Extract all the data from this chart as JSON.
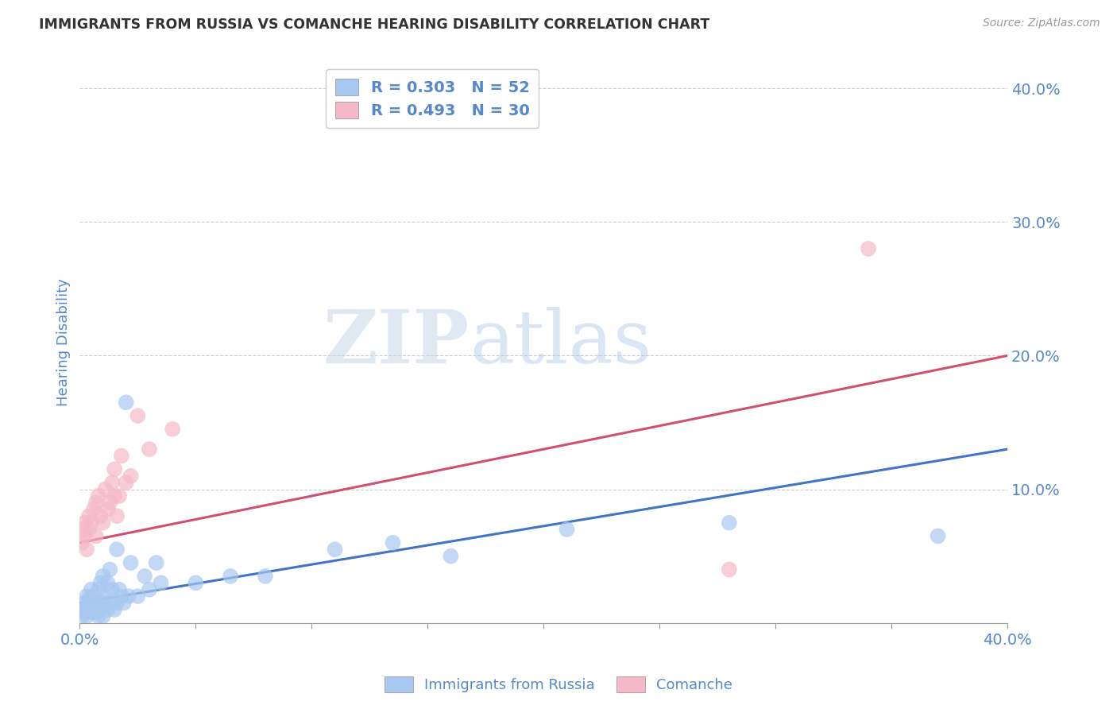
{
  "title": "IMMIGRANTS FROM RUSSIA VS COMANCHE HEARING DISABILITY CORRELATION CHART",
  "source": "Source: ZipAtlas.com",
  "ylabel": "Hearing Disability",
  "xlim": [
    0.0,
    0.4
  ],
  "ylim": [
    0.0,
    0.42
  ],
  "xticks": [
    0.0,
    0.05,
    0.1,
    0.15,
    0.2,
    0.25,
    0.3,
    0.35,
    0.4
  ],
  "yticks_right": [
    0.0,
    0.1,
    0.2,
    0.3,
    0.4
  ],
  "yticklabels_right": [
    "",
    "10.0%",
    "20.0%",
    "30.0%",
    "40.0%"
  ],
  "legend_R1": "R = 0.303",
  "legend_N1": "N = 52",
  "legend_R2": "R = 0.493",
  "legend_N2": "N = 30",
  "color_russia": "#a8c8f0",
  "color_comanche": "#f5b8c8",
  "color_russia_line": "#4472c4",
  "color_comanche_line": "#d05070",
  "color_axis_labels": "#5588cc",
  "color_legend_text": "#5588cc",
  "color_title": "#333333",
  "background_color": "#ffffff",
  "grid_color": "#cccccc",
  "russia_x": [
    0.001,
    0.001,
    0.002,
    0.002,
    0.003,
    0.003,
    0.003,
    0.004,
    0.004,
    0.005,
    0.005,
    0.005,
    0.006,
    0.006,
    0.007,
    0.007,
    0.008,
    0.008,
    0.009,
    0.009,
    0.01,
    0.01,
    0.01,
    0.011,
    0.012,
    0.012,
    0.013,
    0.013,
    0.014,
    0.015,
    0.016,
    0.016,
    0.017,
    0.018,
    0.019,
    0.02,
    0.021,
    0.022,
    0.025,
    0.028,
    0.03,
    0.033,
    0.035,
    0.05,
    0.065,
    0.08,
    0.11,
    0.135,
    0.16,
    0.21,
    0.28,
    0.37
  ],
  "russia_y": [
    0.005,
    0.01,
    0.008,
    0.015,
    0.005,
    0.012,
    0.02,
    0.01,
    0.018,
    0.008,
    0.015,
    0.025,
    0.01,
    0.02,
    0.008,
    0.015,
    0.005,
    0.025,
    0.01,
    0.03,
    0.005,
    0.015,
    0.035,
    0.02,
    0.01,
    0.03,
    0.015,
    0.04,
    0.025,
    0.01,
    0.015,
    0.055,
    0.025,
    0.02,
    0.015,
    0.165,
    0.02,
    0.045,
    0.02,
    0.035,
    0.025,
    0.045,
    0.03,
    0.03,
    0.035,
    0.035,
    0.055,
    0.06,
    0.05,
    0.07,
    0.075,
    0.065
  ],
  "comanche_x": [
    0.001,
    0.001,
    0.002,
    0.002,
    0.003,
    0.004,
    0.004,
    0.005,
    0.006,
    0.007,
    0.007,
    0.008,
    0.009,
    0.01,
    0.011,
    0.012,
    0.013,
    0.014,
    0.015,
    0.015,
    0.016,
    0.017,
    0.018,
    0.02,
    0.022,
    0.025,
    0.03,
    0.04,
    0.28,
    0.34
  ],
  "comanche_y": [
    0.06,
    0.07,
    0.065,
    0.075,
    0.055,
    0.08,
    0.07,
    0.075,
    0.085,
    0.065,
    0.09,
    0.095,
    0.08,
    0.075,
    0.1,
    0.085,
    0.09,
    0.105,
    0.095,
    0.115,
    0.08,
    0.095,
    0.125,
    0.105,
    0.11,
    0.155,
    0.13,
    0.145,
    0.04,
    0.28
  ],
  "russia_trend_y_start": 0.015,
  "russia_trend_y_end": 0.13,
  "comanche_trend_y_start": 0.06,
  "comanche_trend_y_end": 0.2
}
